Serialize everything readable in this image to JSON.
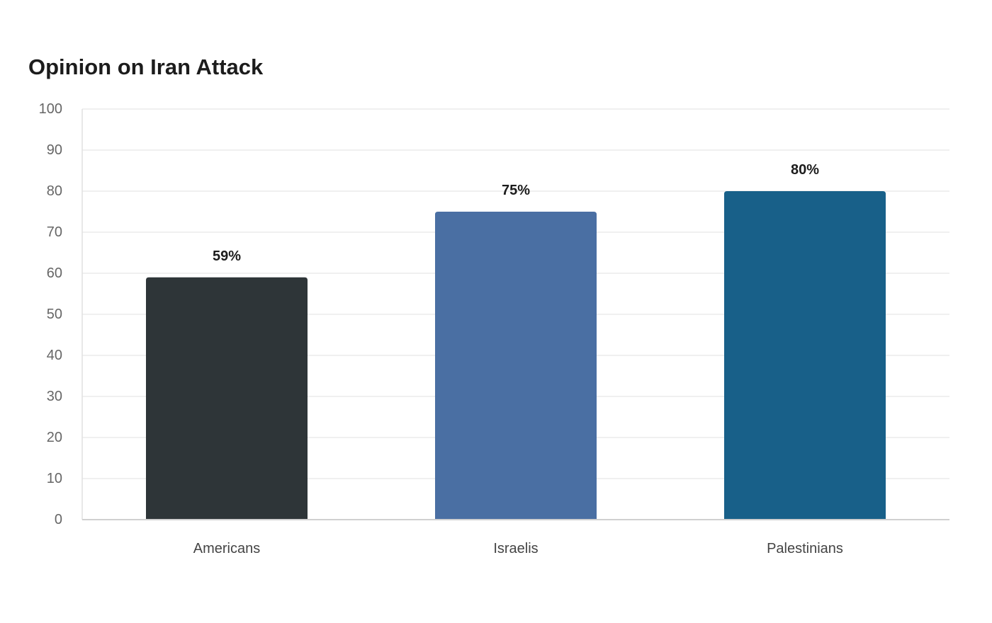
{
  "chart_data": {
    "type": "bar",
    "title": "Opinion on Iran Attack",
    "xlabel": "",
    "ylabel": "",
    "categories": [
      "Americans",
      "Israelis",
      "Palestinians"
    ],
    "values": [
      59,
      75,
      80
    ],
    "data_labels": [
      "59%",
      "75%",
      "80%"
    ],
    "bar_colors": [
      "#2e3538",
      "#4a6fa3",
      "#186089"
    ],
    "ylim": [
      0,
      100
    ],
    "yticks": [
      0,
      10,
      20,
      30,
      40,
      50,
      60,
      70,
      80,
      90,
      100
    ],
    "grid": true,
    "legend": "none"
  }
}
